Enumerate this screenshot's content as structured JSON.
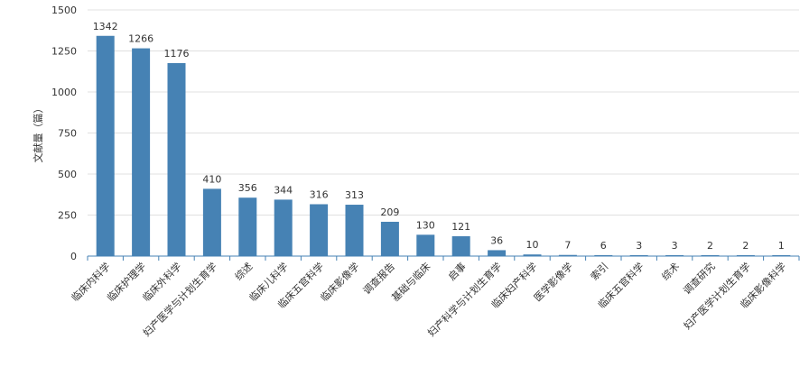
{
  "chart_data": {
    "type": "bar",
    "title": "",
    "xlabel": "",
    "ylabel": "文献量（篇）",
    "ylim": [
      0,
      1500
    ],
    "yticks": [
      0,
      250,
      500,
      750,
      1000,
      1250,
      1500
    ],
    "grid": true,
    "legend": "none",
    "categories": [
      "临床内科学",
      "临床护理学",
      "临床外科学",
      "妇产医学与计划生育学",
      "综述",
      "临床儿科学",
      "临床五官科学",
      "临床影像学",
      "调查报告",
      "基础与临床",
      "启事",
      "妇产科学与计划生育学",
      "临床妇产科学",
      "医学影像学",
      "索引",
      "临床五官科学",
      "综术",
      "调查研究",
      "妇产医学计划生育学",
      "临床影像科学"
    ],
    "values": [
      1342,
      1266,
      1176,
      410,
      356,
      344,
      316,
      313,
      209,
      130,
      121,
      36,
      10,
      7,
      6,
      3,
      3,
      2,
      2,
      1
    ],
    "colors": {
      "bar": "#4682b4",
      "grid": "#e0e0e0",
      "axis": "#4682b4"
    }
  }
}
